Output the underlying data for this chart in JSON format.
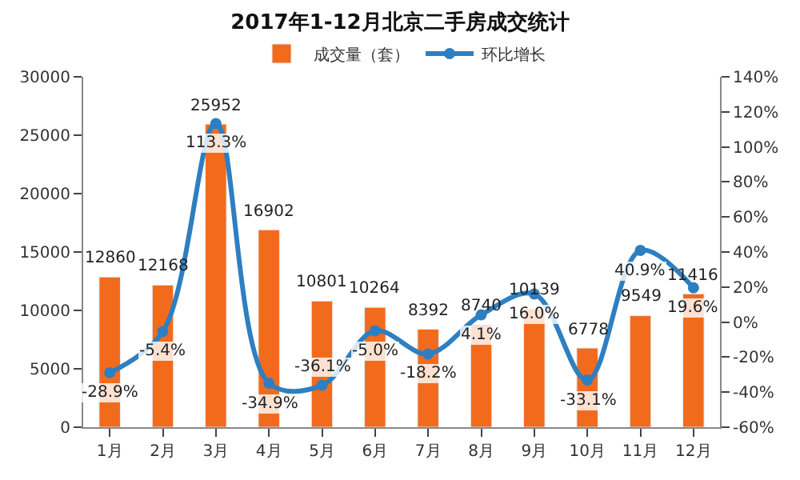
{
  "chart_data": {
    "type": "bar",
    "title": "2017年1-12月北京二手房成交统计",
    "categories": [
      "1月",
      "2月",
      "3月",
      "4月",
      "5月",
      "6月",
      "7月",
      "8月",
      "9月",
      "10月",
      "11月",
      "12月"
    ],
    "series": [
      {
        "name": "成交量（套）",
        "color": "#f26b1d",
        "values": [
          12860,
          12168,
          25952,
          16902,
          10801,
          10264,
          8392,
          8740,
          10139,
          6778,
          9549,
          11416
        ]
      },
      {
        "name": "环比增长",
        "type": "line",
        "axis": "y2",
        "color": "#2e7fc1",
        "marker": "circle",
        "values": [
          -28.9,
          -5.4,
          113.3,
          -34.9,
          -36.1,
          -5.0,
          -18.2,
          4.1,
          16.0,
          -33.1,
          40.9,
          19.6
        ],
        "value_labels": [
          "-28.9%",
          "-5.4%",
          "113.3%",
          "-34.9%",
          "-36.1%",
          "-5.0%",
          "-18.2%",
          "4.1%",
          "16.0%",
          "-33.1%",
          "40.9%",
          "19.6%"
        ]
      }
    ],
    "data_labels": true,
    "ylim": [
      0,
      30000
    ],
    "yticks": [
      0,
      5000,
      10000,
      15000,
      20000,
      25000,
      30000
    ],
    "y2lim": [
      -60,
      140
    ],
    "y2ticks": [
      {
        "value": -60,
        "label": "-60%"
      },
      {
        "value": -40,
        "label": "-40%"
      },
      {
        "value": -20,
        "label": "-20%"
      },
      {
        "value": 0,
        "label": "0%"
      },
      {
        "value": 20,
        "label": "20%"
      },
      {
        "value": 40,
        "label": "40%"
      },
      {
        "value": 60,
        "label": "60%"
      },
      {
        "value": 80,
        "label": "80%"
      },
      {
        "value": 100,
        "label": "100%"
      },
      {
        "value": 120,
        "label": "120%"
      },
      {
        "value": 140,
        "label": "140%"
      }
    ],
    "legend": "top"
  }
}
